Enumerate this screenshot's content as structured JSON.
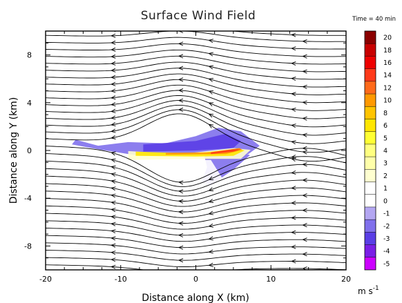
{
  "chart_data": {
    "type": "contour",
    "title": "Surface Wind Field",
    "time_label": "Time = 40 min",
    "xlabel": "Distance along X (km)",
    "ylabel": "Distance along Y (km)",
    "xlim": [
      -20,
      20
    ],
    "ylim": [
      -10,
      10
    ],
    "x_ticks": [
      -20,
      -10,
      0,
      10,
      20
    ],
    "y_ticks": [
      -8,
      -4,
      0,
      4,
      8
    ],
    "colorbar": {
      "unit_label": "m s",
      "unit_exponent": "-1",
      "levels": [
        "20",
        "18",
        "16",
        "14",
        "12",
        "10",
        "8",
        "6",
        "5",
        "4",
        "3",
        "2",
        "1",
        "0",
        "-1",
        "-2",
        "-3",
        "-4",
        "-5"
      ],
      "colors": [
        "#8b0000",
        "#c80000",
        "#ee0000",
        "#ff3a1a",
        "#ff6a1a",
        "#ff9900",
        "#ffc400",
        "#ffe600",
        "#ffff33",
        "#ffff80",
        "#ffffaa",
        "#ffffd0",
        "#ffffff",
        "#ffffff",
        "#b3a6f2",
        "#8070ec",
        "#5a3ee6",
        "#7a1ee6",
        "#cc00ff"
      ]
    },
    "streamline_y0": [
      -9.8,
      -9.2,
      -8.6,
      -8.0,
      -7.4,
      -6.8,
      -6.2,
      -5.6,
      -5.0,
      -4.4,
      -3.8,
      -3.2,
      -2.6,
      -2.0,
      -1.4,
      -0.8,
      -0.2,
      0.4,
      1.0,
      1.6,
      2.2,
      2.8,
      3.4,
      4.0,
      4.6,
      5.2,
      5.8,
      6.4,
      7.0,
      7.6,
      8.2,
      8.8,
      9.4,
      9.9
    ],
    "shaded_regions": [
      {
        "name": "band-purple-light",
        "level": "-2",
        "points": [
          [
            -16,
            0.9
          ],
          [
            -13,
            0.4
          ],
          [
            -9,
            0.7
          ],
          [
            -4,
            0.6
          ],
          [
            0,
            1.2
          ],
          [
            3,
            1.9
          ],
          [
            6,
            1.6
          ],
          [
            8.5,
            0.4
          ],
          [
            7,
            -0.3
          ],
          [
            3,
            -0.1
          ],
          [
            -2,
            -0.4
          ],
          [
            -8,
            -0.4
          ],
          [
            -13,
            0.1
          ],
          [
            -16.5,
            0.5
          ]
        ]
      },
      {
        "name": "lobe-purple-light",
        "level": "-2",
        "points": [
          [
            1,
            -0.1
          ],
          [
            6,
            -0.1
          ],
          [
            7.2,
            -0.4
          ],
          [
            5,
            -1.6
          ],
          [
            2,
            -2.9
          ],
          [
            0.8,
            -2.6
          ],
          [
            1.5,
            -1.4
          ]
        ]
      },
      {
        "name": "band-purple-mid",
        "level": "-3",
        "points": [
          [
            -7,
            0.5
          ],
          [
            0,
            0.8
          ],
          [
            4,
            1.4
          ],
          [
            6,
            0.8
          ],
          [
            5,
            0.2
          ],
          [
            0,
            0.0
          ],
          [
            -7,
            -0.1
          ]
        ]
      },
      {
        "name": "band-yellow-pale",
        "level": "2",
        "points": [
          [
            -9,
            -0.05
          ],
          [
            -2,
            -0.3
          ],
          [
            5,
            0.2
          ],
          [
            7.3,
            0.05
          ],
          [
            6,
            -0.7
          ],
          [
            0,
            -0.7
          ],
          [
            -9,
            -0.8
          ]
        ]
      },
      {
        "name": "band-yellow",
        "level": "6",
        "points": [
          [
            -8,
            -0.1
          ],
          [
            0,
            -0.25
          ],
          [
            5.5,
            0.15
          ],
          [
            6.5,
            0.0
          ],
          [
            5,
            -0.45
          ],
          [
            0,
            -0.5
          ],
          [
            -8,
            -0.45
          ]
        ]
      },
      {
        "name": "band-orange",
        "level": "10",
        "points": [
          [
            -4,
            -0.2
          ],
          [
            2,
            -0.15
          ],
          [
            5.8,
            0.2
          ],
          [
            6.2,
            0.05
          ],
          [
            4,
            -0.3
          ],
          [
            -4,
            -0.35
          ]
        ]
      },
      {
        "name": "band-red",
        "level": "14",
        "points": [
          [
            2,
            -0.15
          ],
          [
            5,
            0.1
          ],
          [
            6,
            0.1
          ],
          [
            5,
            -0.1
          ],
          [
            2,
            -0.3
          ]
        ]
      },
      {
        "name": "pale-left",
        "level": "1",
        "points": [
          [
            -13,
            -0.8
          ],
          [
            -9,
            -0.6
          ],
          [
            -8.5,
            -3.4
          ],
          [
            -10.5,
            -4.2
          ],
          [
            -13,
            -2.5
          ]
        ]
      },
      {
        "name": "pale-center",
        "level": "1",
        "points": [
          [
            -4,
            -0.8
          ],
          [
            2,
            -0.8
          ],
          [
            4,
            -2.8
          ],
          [
            0,
            -3.6
          ],
          [
            -4,
            -2.5
          ]
        ]
      },
      {
        "name": "pale-right-upper",
        "level": "1",
        "points": [
          [
            13,
            4.5
          ],
          [
            18,
            4.8
          ],
          [
            20,
            3.9
          ],
          [
            19,
            2.6
          ],
          [
            14,
            3.1
          ]
        ]
      },
      {
        "name": "pale-right-lower",
        "level": "1",
        "points": [
          [
            15,
            -1.4
          ],
          [
            19,
            -1.1
          ],
          [
            20,
            -2.2
          ],
          [
            17,
            -3.0
          ]
        ]
      }
    ]
  }
}
